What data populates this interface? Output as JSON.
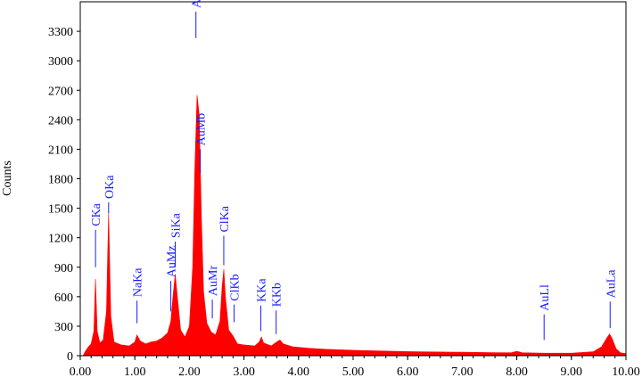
{
  "chart_data": {
    "type": "area",
    "title": "",
    "xlabel": "",
    "ylabel": "Counts",
    "xlim": [
      0,
      10
    ],
    "ylim": [
      0,
      3600
    ],
    "x_ticks": [
      "0.00",
      "1.00",
      "2.00",
      "3.00",
      "4.00",
      "5.00",
      "6.00",
      "7.00",
      "8.00",
      "9.00",
      "10.00"
    ],
    "y_ticks": [
      "0",
      "300",
      "600",
      "900",
      "1200",
      "1500",
      "1800",
      "2100",
      "2400",
      "2700",
      "3000",
      "3300"
    ],
    "grid": false,
    "legend": "none",
    "fill_color": "#ff0000",
    "label_color": "#1a1aff",
    "spectrum": [
      [
        0.05,
        0
      ],
      [
        0.1,
        50
      ],
      [
        0.15,
        90
      ],
      [
        0.2,
        120
      ],
      [
        0.25,
        250
      ],
      [
        0.28,
        780
      ],
      [
        0.31,
        250
      ],
      [
        0.36,
        130
      ],
      [
        0.42,
        160
      ],
      [
        0.48,
        450
      ],
      [
        0.52,
        1450
      ],
      [
        0.56,
        400
      ],
      [
        0.62,
        140
      ],
      [
        0.75,
        110
      ],
      [
        0.9,
        100
      ],
      [
        1.0,
        140
      ],
      [
        1.04,
        210
      ],
      [
        1.1,
        150
      ],
      [
        1.2,
        120
      ],
      [
        1.3,
        140
      ],
      [
        1.4,
        150
      ],
      [
        1.5,
        180
      ],
      [
        1.6,
        230
      ],
      [
        1.66,
        350
      ],
      [
        1.7,
        600
      ],
      [
        1.74,
        830
      ],
      [
        1.78,
        600
      ],
      [
        1.84,
        260
      ],
      [
        1.92,
        190
      ],
      [
        2.0,
        300
      ],
      [
        2.06,
        900
      ],
      [
        2.1,
        1900
      ],
      [
        2.14,
        2650
      ],
      [
        2.18,
        2450
      ],
      [
        2.22,
        1400
      ],
      [
        2.26,
        650
      ],
      [
        2.32,
        330
      ],
      [
        2.4,
        240
      ],
      [
        2.48,
        210
      ],
      [
        2.56,
        350
      ],
      [
        2.6,
        700
      ],
      [
        2.63,
        880
      ],
      [
        2.66,
        600
      ],
      [
        2.72,
        260
      ],
      [
        2.8,
        200
      ],
      [
        2.88,
        120
      ],
      [
        3.0,
        110
      ],
      [
        3.2,
        100
      ],
      [
        3.28,
        140
      ],
      [
        3.32,
        190
      ],
      [
        3.36,
        130
      ],
      [
        3.5,
        100
      ],
      [
        3.6,
        140
      ],
      [
        3.66,
        160
      ],
      [
        3.72,
        120
      ],
      [
        3.9,
        90
      ],
      [
        4.2,
        75
      ],
      [
        4.5,
        65
      ],
      [
        5.0,
        55
      ],
      [
        5.5,
        48
      ],
      [
        6.0,
        42
      ],
      [
        6.5,
        38
      ],
      [
        7.0,
        35
      ],
      [
        7.5,
        32
      ],
      [
        7.9,
        30
      ],
      [
        8.0,
        45
      ],
      [
        8.1,
        30
      ],
      [
        8.5,
        25
      ],
      [
        9.0,
        25
      ],
      [
        9.4,
        40
      ],
      [
        9.55,
        90
      ],
      [
        9.65,
        180
      ],
      [
        9.7,
        220
      ],
      [
        9.75,
        170
      ],
      [
        9.82,
        70
      ],
      [
        9.9,
        30
      ],
      [
        10.0,
        20
      ]
    ],
    "peak_labels": [
      {
        "text": "CKa",
        "x": 0.28,
        "line_top": 1280,
        "line_bottom": 900
      },
      {
        "text": "OKa",
        "x": 0.52,
        "line_top": 1560,
        "line_bottom": 1450
      },
      {
        "text": "NaKa",
        "x": 1.04,
        "line_top": 560,
        "line_bottom": 330
      },
      {
        "text": "SiKa",
        "x": 1.74,
        "line_top": 1160,
        "line_bottom": 900
      },
      {
        "text": "AuMz",
        "x": 1.66,
        "line_top": 760,
        "line_bottom": 450
      },
      {
        "text": "AuMa",
        "x": 2.12,
        "line_top": 3500,
        "line_bottom": 3230
      },
      {
        "text": "AuMb",
        "x": 2.2,
        "line_top": 2100,
        "line_bottom": 1860
      },
      {
        "text": "AuMr",
        "x": 2.42,
        "line_top": 570,
        "line_bottom": 380
      },
      {
        "text": "ClKa",
        "x": 2.63,
        "line_top": 1220,
        "line_bottom": 920
      },
      {
        "text": "ClKb",
        "x": 2.82,
        "line_top": 520,
        "line_bottom": 340
      },
      {
        "text": "KKa",
        "x": 3.31,
        "line_top": 510,
        "line_bottom": 250
      },
      {
        "text": "KKb",
        "x": 3.59,
        "line_top": 460,
        "line_bottom": 220
      },
      {
        "text": "AuLl",
        "x": 8.5,
        "line_top": 420,
        "line_bottom": 160
      },
      {
        "text": "AuLa",
        "x": 9.71,
        "line_top": 550,
        "line_bottom": 280
      }
    ]
  }
}
